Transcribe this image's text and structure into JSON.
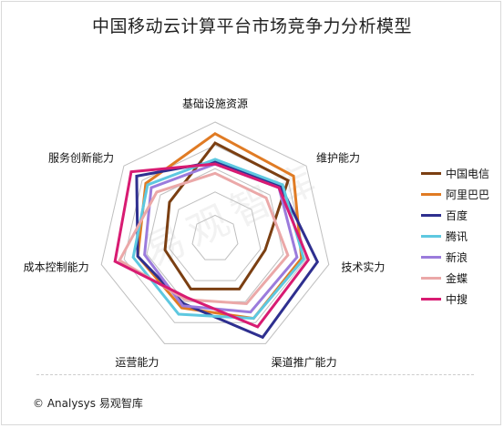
{
  "title": "中国移动云计算平台市场竞争力分析模型",
  "footer": "© Analysys 易观智库",
  "watermark": "易观智库",
  "chart_data": {
    "type": "radar",
    "axes": [
      "基础设施资源",
      "维护能力",
      "技术实力",
      "渠道推广能力",
      "运营能力",
      "成本控制能力",
      "服务创新能力"
    ],
    "range": [
      0,
      5
    ],
    "rings": 5,
    "grid": true,
    "legend_position": "right",
    "series": [
      {
        "name": "中国电信",
        "color": "#7b3f12",
        "values": [
          4.1,
          4.0,
          2.2,
          2.4,
          2.4,
          2.2,
          2.5
        ]
      },
      {
        "name": "阿里巴巴",
        "color": "#e07b24",
        "values": [
          4.5,
          4.3,
          3.8,
          3.8,
          3.3,
          3.4,
          3.8
        ]
      },
      {
        "name": "百度",
        "color": "#2e2f8f",
        "values": [
          3.3,
          3.6,
          4.5,
          4.7,
          3.1,
          3.4,
          4.3
        ]
      },
      {
        "name": "腾讯",
        "color": "#5ec8e0",
        "values": [
          3.4,
          3.7,
          3.9,
          3.8,
          3.6,
          3.6,
          3.7
        ]
      },
      {
        "name": "新浪",
        "color": "#9b7bdc",
        "values": [
          3.2,
          3.5,
          3.6,
          3.5,
          3.2,
          3.1,
          3.5
        ]
      },
      {
        "name": "金蝶",
        "color": "#eba8a8",
        "values": [
          2.8,
          2.8,
          3.2,
          3.1,
          2.9,
          4.2,
          3.2
        ]
      },
      {
        "name": "中搜",
        "color": "#d81b72",
        "values": [
          3.2,
          3.5,
          4.1,
          4.2,
          2.8,
          4.4,
          4.6
        ]
      }
    ]
  }
}
